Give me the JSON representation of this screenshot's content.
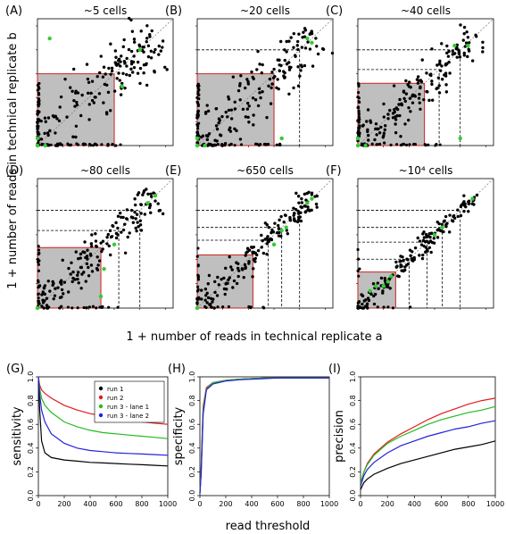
{
  "figure": {
    "scatter_ylabel": "1 + number of reads in technical replicate b",
    "scatter_xlabel": "1 + number of reads in technical replicate a",
    "curve_xlabel": "read threshold"
  },
  "colors": {
    "points": "#000000",
    "outliers": "#33cc33",
    "box_fill": "#bfbfbf",
    "box_edge": "#cc2222",
    "run1": "#000000",
    "run2": "#e41a1c",
    "run3_lane1": "#22bb22",
    "run3_lane2": "#2222dd"
  },
  "chart_data": [
    {
      "panel": "(A)",
      "title": "~5 cells",
      "type": "scatter",
      "scale": "log",
      "box": [
        1,
        1000
      ],
      "thresholds": [],
      "outliers": [
        [
          1,
          1
        ],
        [
          2,
          1
        ],
        [
          1,
          2
        ],
        [
          2000,
          300
        ],
        [
          10000,
          10000
        ],
        [
          3,
          30000
        ]
      ]
    },
    {
      "panel": "(B)",
      "title": "~20 cells",
      "type": "scatter",
      "scale": "log",
      "box": [
        1,
        1000
      ],
      "thresholds": [
        10000
      ],
      "outliers": [
        [
          1,
          1
        ],
        [
          2,
          1
        ],
        [
          1,
          2
        ],
        [
          2000,
          2
        ],
        [
          30000,
          20000
        ],
        [
          20000,
          30000
        ]
      ]
    },
    {
      "panel": "(C)",
      "title": "~40 cells",
      "type": "scatter",
      "scale": "log",
      "box": [
        1,
        400
      ],
      "thresholds": [
        1500,
        10000
      ],
      "outliers": [
        [
          1,
          1
        ],
        [
          2,
          1
        ],
        [
          1,
          2
        ],
        [
          10000,
          2
        ],
        [
          20000,
          15000
        ],
        [
          6000,
          15000
        ]
      ]
    },
    {
      "panel": "(D)",
      "title": "~80 cells",
      "type": "scatter",
      "scale": "log",
      "box": [
        1,
        300
      ],
      "thresholds": [
        1500,
        10000
      ],
      "outliers": [
        [
          1,
          1
        ],
        [
          300,
          3
        ],
        [
          400,
          40
        ],
        [
          20000,
          20000
        ],
        [
          40000,
          40000
        ],
        [
          1000,
          400
        ]
      ]
    },
    {
      "panel": "(E)",
      "title": "~650 cells",
      "type": "scatter",
      "scale": "log",
      "box": [
        1,
        150
      ],
      "thresholds": [
        600,
        2000,
        10000
      ],
      "outliers": [
        [
          1,
          1
        ],
        [
          1000,
          400
        ],
        [
          2000,
          1500
        ],
        [
          3000,
          2000
        ],
        [
          30000,
          30000
        ],
        [
          20000,
          20000
        ]
      ]
    },
    {
      "panel": "(F)",
      "title": "~10⁴ cells",
      "type": "scatter",
      "scale": "log",
      "box": [
        1,
        30
      ],
      "thresholds": [
        100,
        500,
        2000,
        10000
      ],
      "outliers": [
        [
          3,
          5
        ],
        [
          5,
          8
        ],
        [
          10,
          8
        ],
        [
          15,
          12
        ],
        [
          20,
          20
        ],
        [
          1000,
          1000
        ],
        [
          2000,
          2000
        ],
        [
          30000,
          30000
        ]
      ]
    },
    {
      "panel": "(G)",
      "type": "line",
      "ylabel": "sensitivity",
      "xlim": [
        0,
        1000
      ],
      "ylim": [
        0,
        1
      ],
      "xticks": [
        0,
        200,
        400,
        600,
        800,
        1000
      ],
      "yticks": [
        0.0,
        0.2,
        0.4,
        0.6,
        0.8,
        1.0
      ],
      "legend": "top-right",
      "x": [
        0,
        10,
        25,
        50,
        100,
        200,
        300,
        400,
        500,
        600,
        700,
        800,
        900,
        1000
      ],
      "series": [
        {
          "name": "run 1",
          "color": "#000000",
          "values": [
            1.0,
            0.72,
            0.46,
            0.36,
            0.32,
            0.3,
            0.29,
            0.28,
            0.275,
            0.27,
            0.265,
            0.26,
            0.255,
            0.25
          ]
        },
        {
          "name": "run 2",
          "color": "#e41a1c",
          "values": [
            1.0,
            0.93,
            0.89,
            0.86,
            0.82,
            0.76,
            0.72,
            0.69,
            0.67,
            0.65,
            0.635,
            0.62,
            0.61,
            0.6
          ]
        },
        {
          "name": "run 3 - lane 1",
          "color": "#22bb22",
          "values": [
            1.0,
            0.9,
            0.82,
            0.76,
            0.7,
            0.62,
            0.58,
            0.55,
            0.53,
            0.52,
            0.51,
            0.5,
            0.49,
            0.48
          ]
        },
        {
          "name": "run 3 - lane 2",
          "color": "#2222dd",
          "values": [
            1.0,
            0.85,
            0.72,
            0.62,
            0.52,
            0.44,
            0.4,
            0.38,
            0.37,
            0.36,
            0.355,
            0.35,
            0.345,
            0.34
          ]
        }
      ]
    },
    {
      "panel": "(H)",
      "type": "line",
      "ylabel": "specificity",
      "xlim": [
        0,
        1000
      ],
      "ylim": [
        0,
        1
      ],
      "xticks": [
        0,
        200,
        400,
        600,
        800,
        1000
      ],
      "yticks": [
        0.0,
        0.2,
        0.4,
        0.6,
        0.8,
        1.0
      ],
      "x": [
        0,
        10,
        25,
        50,
        100,
        200,
        300,
        400,
        500,
        600,
        700,
        800,
        900,
        1000
      ],
      "series": [
        {
          "name": "run 1",
          "color": "#000000",
          "values": [
            0.02,
            0.2,
            0.7,
            0.9,
            0.95,
            0.97,
            0.98,
            0.985,
            0.99,
            0.99,
            0.99,
            0.99,
            0.99,
            0.99
          ]
        },
        {
          "name": "run 2",
          "color": "#e41a1c",
          "values": [
            0.02,
            0.25,
            0.75,
            0.91,
            0.95,
            0.97,
            0.98,
            0.985,
            0.99,
            0.99,
            0.99,
            0.99,
            0.99,
            0.99
          ]
        },
        {
          "name": "run 3 - lane 1",
          "color": "#22bb22",
          "values": [
            0.02,
            0.22,
            0.72,
            0.9,
            0.95,
            0.97,
            0.98,
            0.985,
            0.99,
            0.99,
            0.99,
            0.99,
            0.99,
            0.99
          ]
        },
        {
          "name": "run 3 - lane 2",
          "color": "#2222dd",
          "values": [
            0.02,
            0.18,
            0.68,
            0.89,
            0.94,
            0.965,
            0.975,
            0.98,
            0.985,
            0.99,
            0.99,
            0.99,
            0.99,
            0.99
          ]
        }
      ]
    },
    {
      "panel": "(I)",
      "type": "line",
      "ylabel": "precision",
      "xlim": [
        0,
        1000
      ],
      "ylim": [
        0,
        1
      ],
      "xticks": [
        0,
        200,
        400,
        600,
        800,
        1000
      ],
      "yticks": [
        0.0,
        0.2,
        0.4,
        0.6,
        0.8,
        1.0
      ],
      "x": [
        0,
        25,
        50,
        100,
        200,
        300,
        400,
        500,
        600,
        700,
        800,
        900,
        1000
      ],
      "series": [
        {
          "name": "run 1",
          "color": "#000000",
          "values": [
            0.05,
            0.11,
            0.14,
            0.18,
            0.23,
            0.27,
            0.3,
            0.33,
            0.36,
            0.39,
            0.41,
            0.43,
            0.46
          ]
        },
        {
          "name": "run 2",
          "color": "#e41a1c",
          "values": [
            0.1,
            0.2,
            0.27,
            0.35,
            0.45,
            0.52,
            0.58,
            0.64,
            0.69,
            0.73,
            0.77,
            0.8,
            0.82
          ]
        },
        {
          "name": "run 3 - lane 1",
          "color": "#22bb22",
          "values": [
            0.1,
            0.2,
            0.26,
            0.34,
            0.44,
            0.5,
            0.55,
            0.6,
            0.64,
            0.67,
            0.7,
            0.72,
            0.75
          ]
        },
        {
          "name": "run 3 - lane 2",
          "color": "#2222dd",
          "values": [
            0.08,
            0.17,
            0.22,
            0.28,
            0.36,
            0.42,
            0.46,
            0.5,
            0.53,
            0.56,
            0.58,
            0.61,
            0.63
          ]
        }
      ]
    }
  ]
}
